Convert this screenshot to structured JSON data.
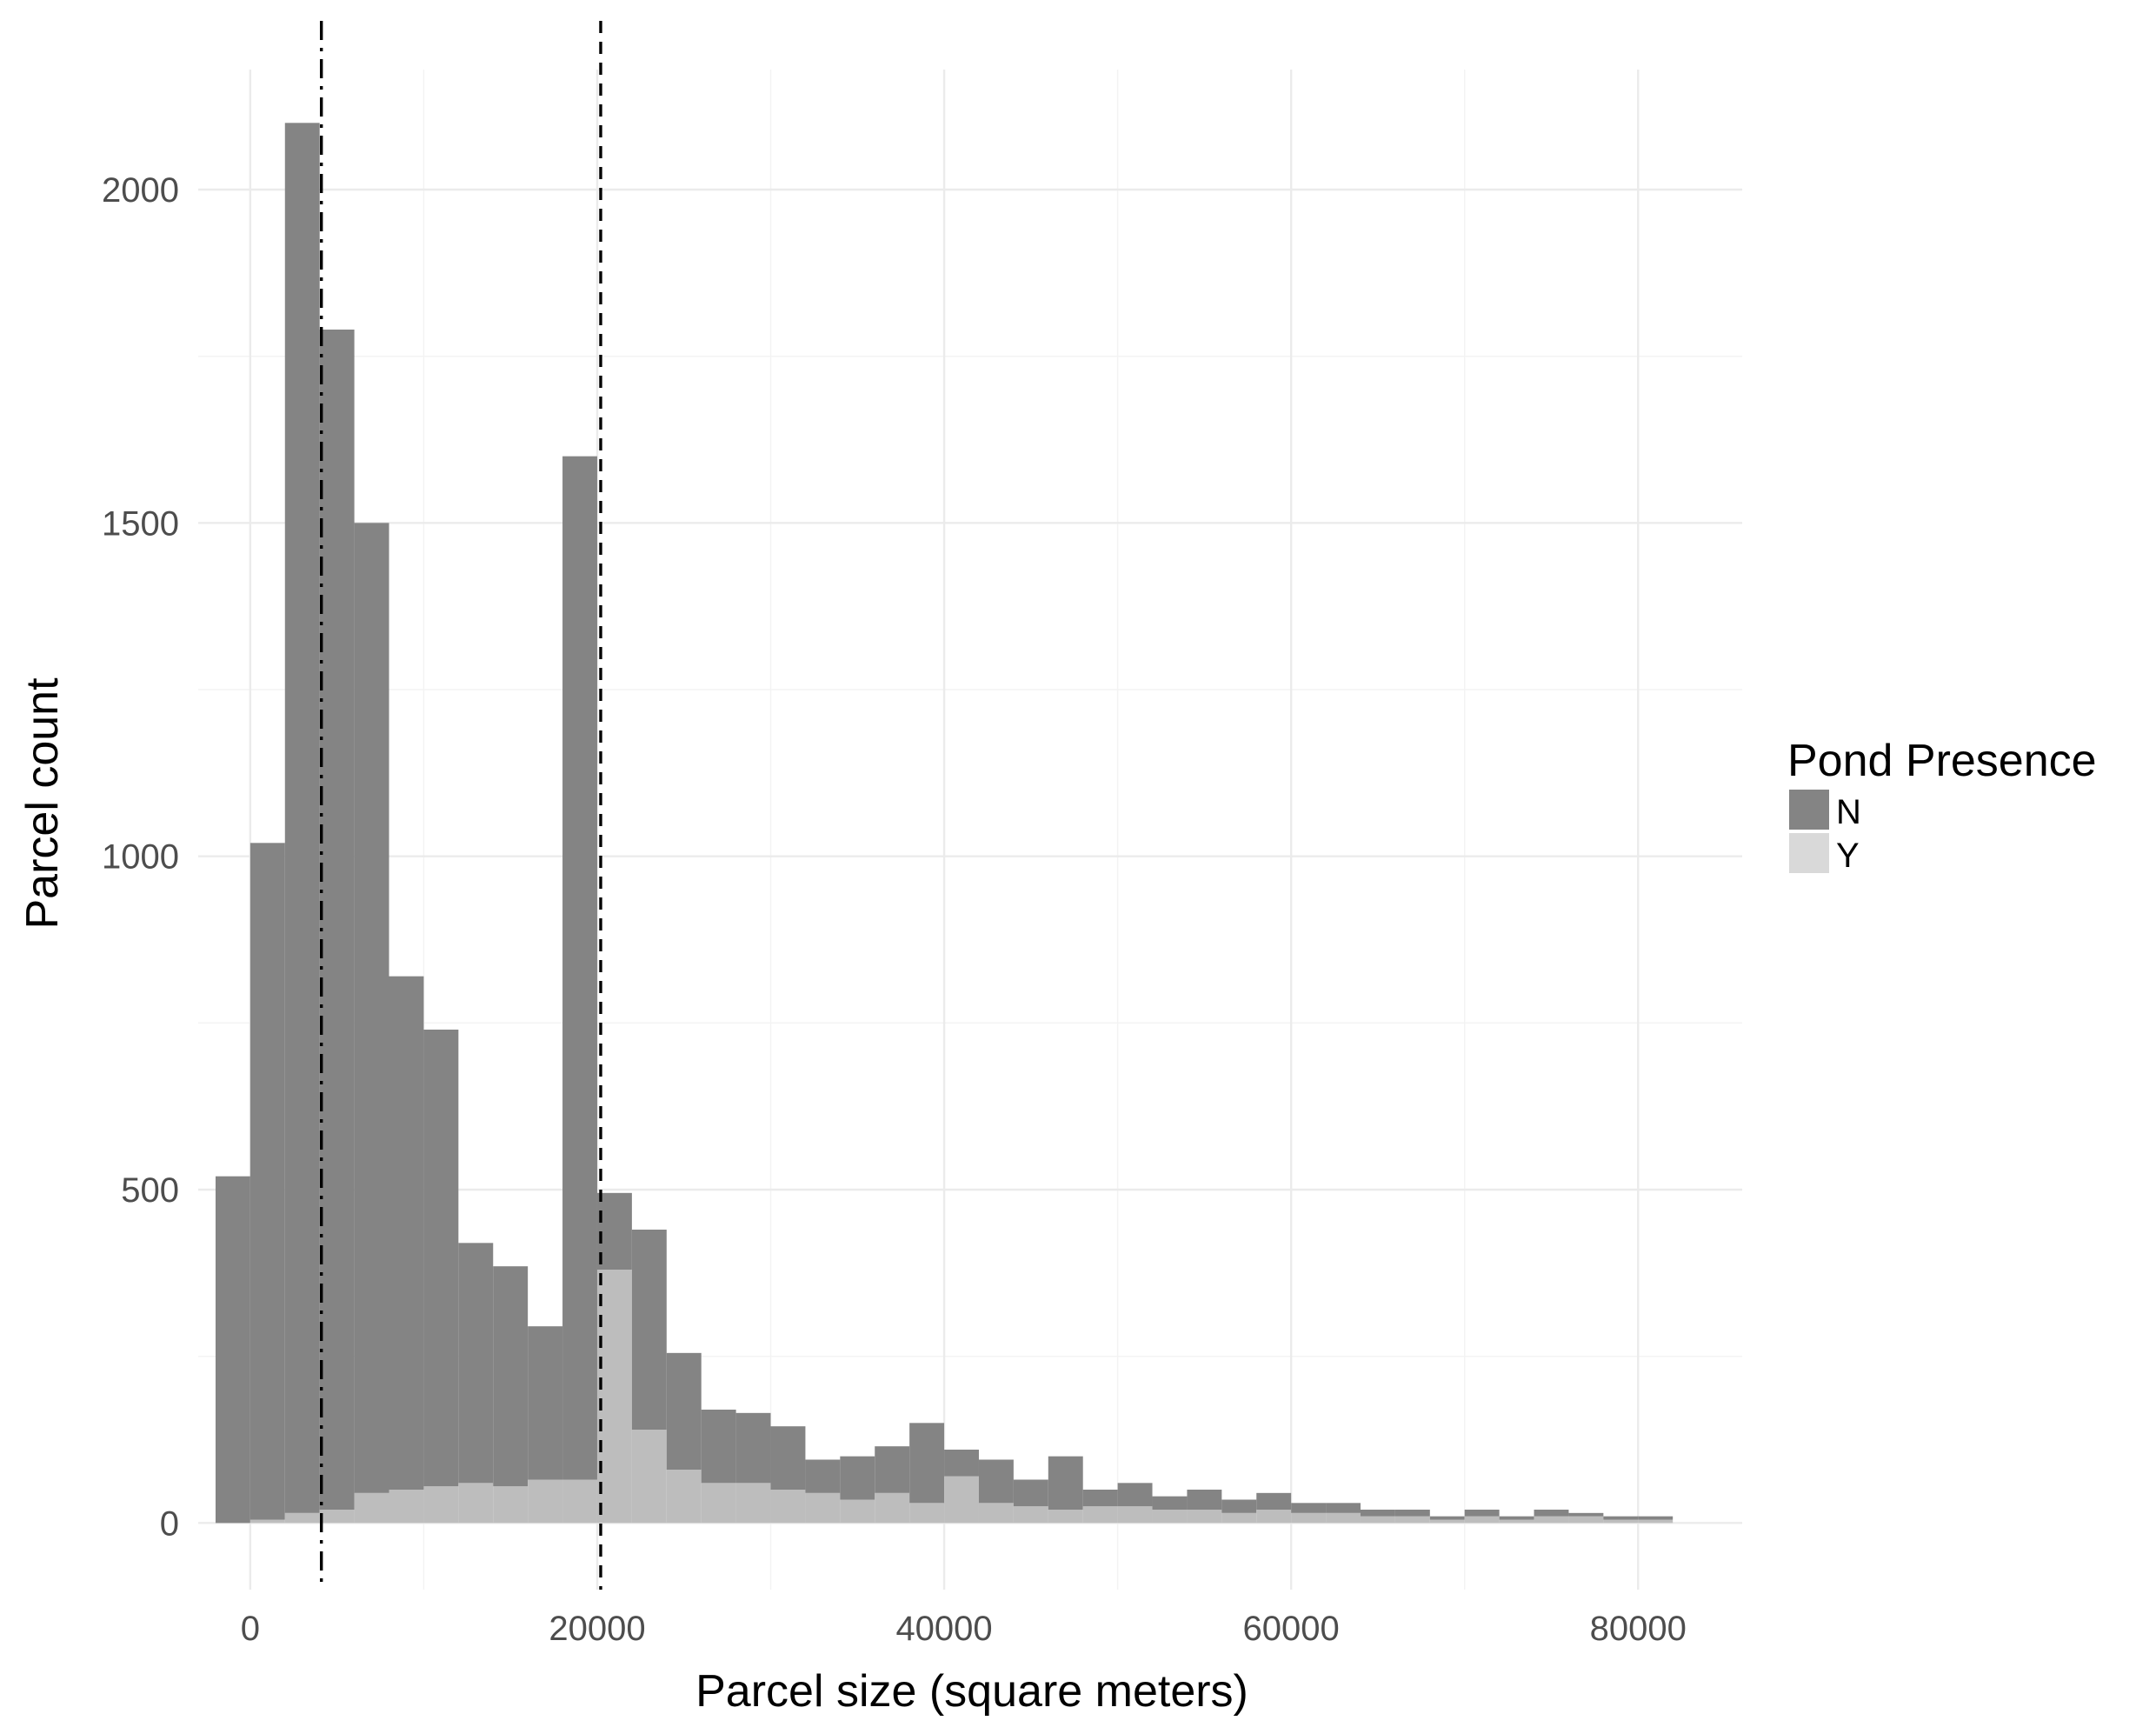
{
  "chart_data": {
    "type": "bar",
    "subtype": "stacked-histogram",
    "xlabel": "Parcel size (square meters)",
    "ylabel": "Parcel count",
    "xlim": [
      -3000,
      86000
    ],
    "ylim": [
      -100,
      2180
    ],
    "x_ticks": [
      {
        "value": 0,
        "label": "0"
      },
      {
        "value": 20000,
        "label": "20000"
      },
      {
        "value": 40000,
        "label": "40000"
      },
      {
        "value": 60000,
        "label": "60000"
      },
      {
        "value": 80000,
        "label": "80000"
      }
    ],
    "y_ticks": [
      {
        "value": 0,
        "label": "0"
      },
      {
        "value": 500,
        "label": "500"
      },
      {
        "value": 1000,
        "label": "1000"
      },
      {
        "value": 1500,
        "label": "1500"
      },
      {
        "value": 2000,
        "label": "2000"
      }
    ],
    "grid": true,
    "bin_width": 2000,
    "bins_x": [
      -1000,
      1000,
      3000,
      5000,
      7000,
      9000,
      11000,
      13000,
      15000,
      17000,
      19000,
      21000,
      23000,
      25000,
      27000,
      29000,
      31000,
      33000,
      35000,
      37000,
      39000,
      41000,
      43000,
      45000,
      47000,
      49000,
      51000,
      53000,
      55000,
      57000,
      59000,
      61000,
      63000,
      65000,
      67000,
      69000,
      71000,
      73000,
      75000,
      77000,
      79000,
      81000
    ],
    "series": [
      {
        "name": "Y",
        "color": "#bdbdbd",
        "values": [
          0,
          5,
          15,
          20,
          45,
          50,
          55,
          60,
          55,
          65,
          65,
          380,
          140,
          80,
          60,
          60,
          50,
          45,
          35,
          45,
          30,
          70,
          30,
          25,
          20,
          25,
          25,
          20,
          20,
          15,
          20,
          15,
          15,
          10,
          10,
          5,
          10,
          5,
          10,
          10,
          5,
          5
        ]
      },
      {
        "name": "N",
        "color": "#848484",
        "values": [
          520,
          1015,
          2085,
          1770,
          1455,
          770,
          685,
          360,
          330,
          230,
          1535,
          115,
          300,
          175,
          110,
          105,
          95,
          50,
          65,
          70,
          120,
          40,
          65,
          40,
          80,
          25,
          35,
          20,
          30,
          20,
          25,
          15,
          15,
          10,
          10,
          5,
          10,
          5,
          10,
          5,
          5,
          5
        ]
      }
    ],
    "stacked_order": [
      "Y",
      "N"
    ],
    "vlines": [
      {
        "x": 4100,
        "style": "dash-dot",
        "color": "#000000"
      },
      {
        "x": 20200,
        "style": "dashed",
        "color": "#000000"
      }
    ],
    "legend": {
      "title": "Pond Presence",
      "position": "right",
      "entries": [
        {
          "label": "N",
          "color": "#848484"
        },
        {
          "label": "Y",
          "color": "#d9d9d9"
        }
      ]
    }
  }
}
